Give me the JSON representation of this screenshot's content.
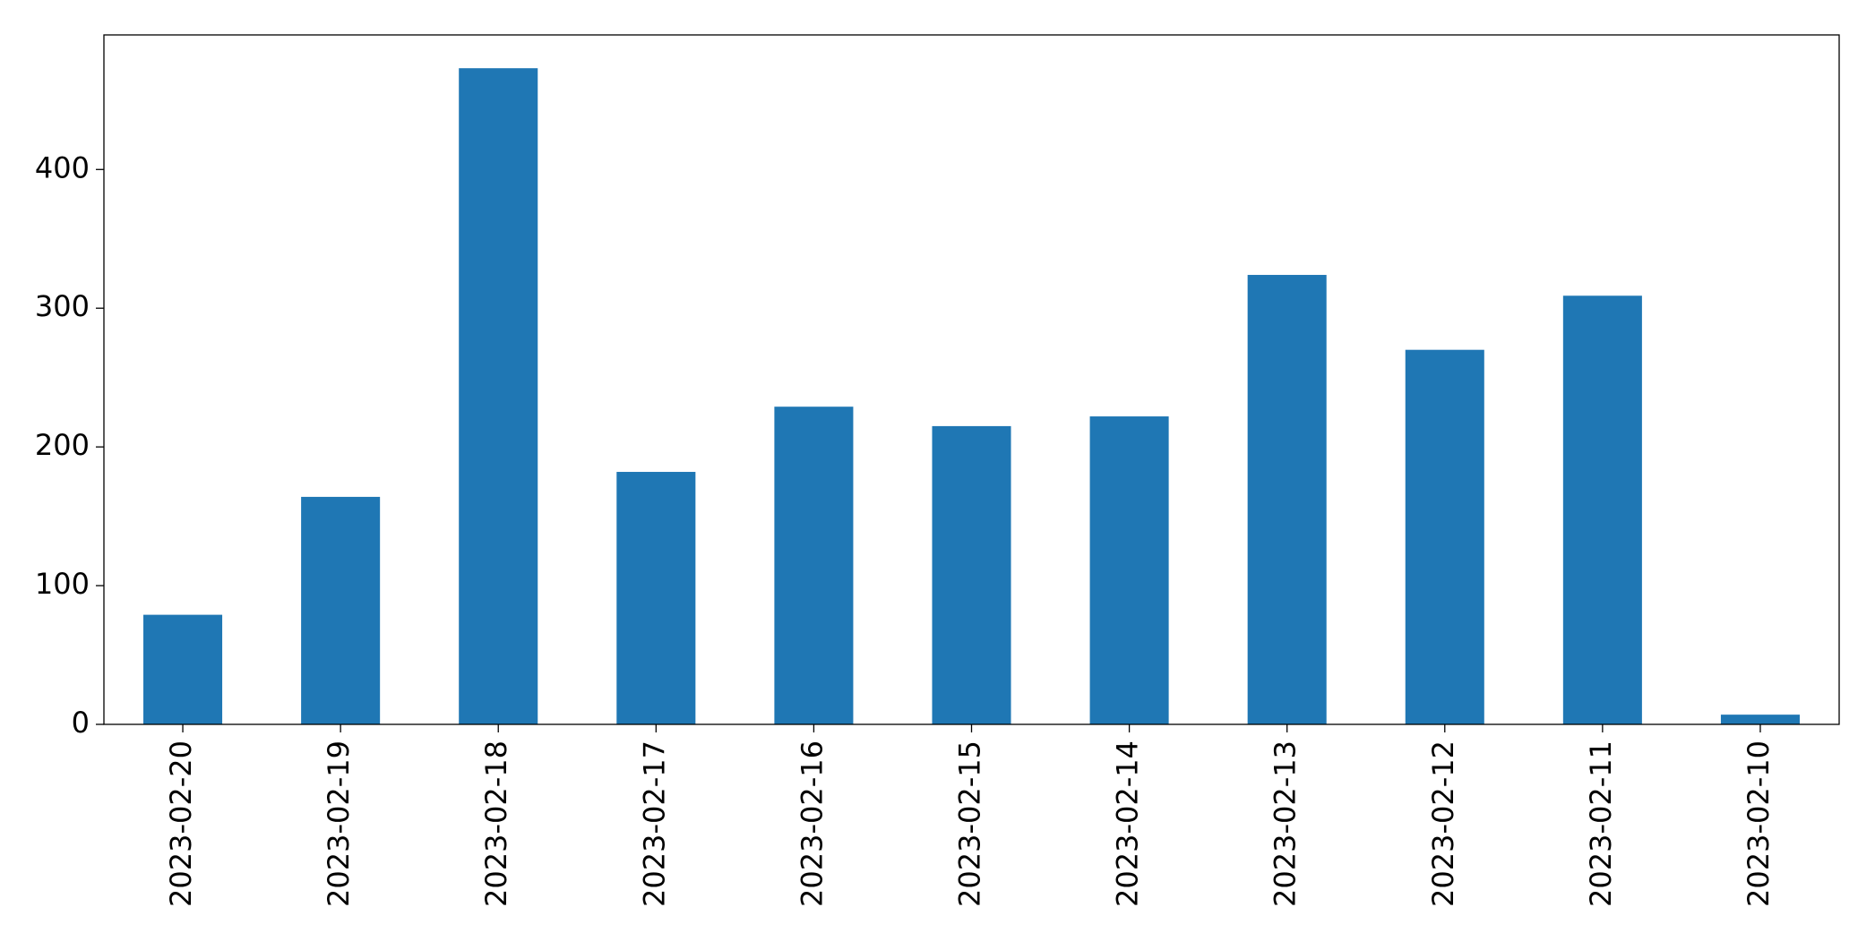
{
  "chart_data": {
    "type": "bar",
    "categories": [
      "2023-02-20",
      "2023-02-19",
      "2023-02-18",
      "2023-02-17",
      "2023-02-16",
      "2023-02-15",
      "2023-02-14",
      "2023-02-13",
      "2023-02-12",
      "2023-02-11",
      "2023-02-10"
    ],
    "values": [
      79,
      164,
      473,
      182,
      229,
      215,
      222,
      324,
      270,
      309,
      7
    ],
    "color": "#1f77b4",
    "ylim": [
      0,
      497
    ],
    "yticks": [
      0,
      100,
      200,
      300,
      400
    ],
    "grid": false
  }
}
